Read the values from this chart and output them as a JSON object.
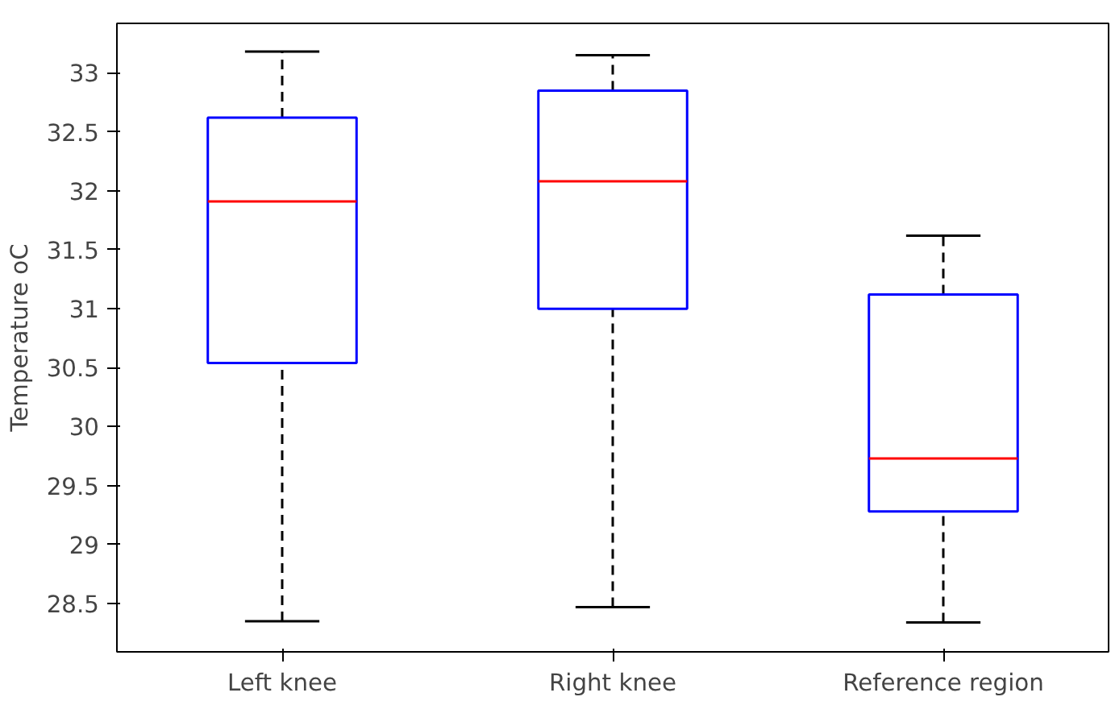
{
  "chart_data": {
    "type": "box",
    "ylabel": "Temperature oC",
    "categories": [
      "Left knee",
      "Right knee",
      "Reference region"
    ],
    "boxes": [
      {
        "low": 28.35,
        "q1": 30.54,
        "median": 31.91,
        "q3": 32.62,
        "high": 33.18
      },
      {
        "low": 28.47,
        "q1": 31.0,
        "median": 32.08,
        "q3": 32.85,
        "high": 33.15
      },
      {
        "low": 28.34,
        "q1": 29.28,
        "median": 29.73,
        "q3": 31.12,
        "high": 31.62
      }
    ],
    "ylim": [
      28.09,
      33.42
    ],
    "yticks": [
      28.5,
      29,
      29.5,
      30,
      30.5,
      31,
      31.5,
      32,
      32.5,
      33
    ],
    "grid": false
  }
}
